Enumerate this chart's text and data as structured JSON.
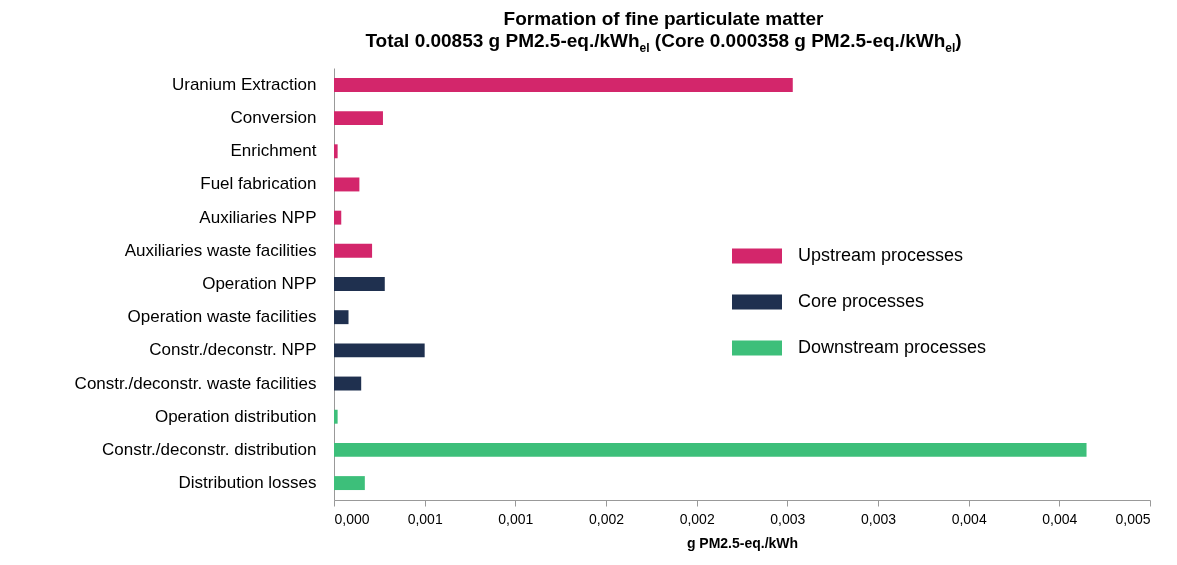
{
  "chart_data": {
    "type": "bar",
    "orientation": "horizontal",
    "title": "Formation of fine particulate matter",
    "subtitle": "Total 0.00853 g PM2.5-eq./kWh$_{el}$  (Core 0.000358 g PM2.5-eq./kWh$_{el}$)",
    "xlabel": "g PM2.5-eq./kWh",
    "categories": [
      "Uranium Extraction",
      "Conversion",
      "Enrichment",
      "Fuel fabrication",
      "Auxiliaries NPP",
      "Auxiliaries waste facilities",
      "Operation NPP",
      "Operation waste facilities",
      "Constr./deconstr. NPP",
      "Constr./deconstr. waste facilities",
      "Operation distribution",
      "Constr./deconstr. distribution",
      "Distribution losses"
    ],
    "series": [
      {
        "name": "Upstream processes",
        "color": "#d3266b",
        "values": [
          0.00253,
          0.00027,
          2e-05,
          0.00014,
          4e-05,
          0.00021,
          null,
          null,
          null,
          null,
          null,
          null,
          null
        ]
      },
      {
        "name": "Core processes",
        "color": "#1f304f",
        "values": [
          null,
          null,
          null,
          null,
          null,
          null,
          0.00028,
          8e-05,
          0.0005,
          0.00015,
          null,
          null,
          null
        ]
      },
      {
        "name": "Downstream processes",
        "color": "#3dbf7a",
        "values": [
          null,
          null,
          null,
          null,
          null,
          null,
          null,
          null,
          null,
          null,
          2e-05,
          0.00415,
          0.00017
        ]
      }
    ],
    "xlim": [
      0,
      0.0045
    ],
    "xticks": [
      {
        "value": 0,
        "label": "0,000"
      },
      {
        "value": 0.0005,
        "label": "0,001"
      },
      {
        "value": 0.001,
        "label": "0,001"
      },
      {
        "value": 0.0015,
        "label": "0,002"
      },
      {
        "value": 0.002,
        "label": "0,002"
      },
      {
        "value": 0.0025,
        "label": "0,003"
      },
      {
        "value": 0.003,
        "label": "0,003"
      },
      {
        "value": 0.0035,
        "label": "0,004"
      },
      {
        "value": 0.004,
        "label": "0,004"
      },
      {
        "value": 0.0045,
        "label": "0,005"
      }
    ],
    "legend": "right"
  }
}
